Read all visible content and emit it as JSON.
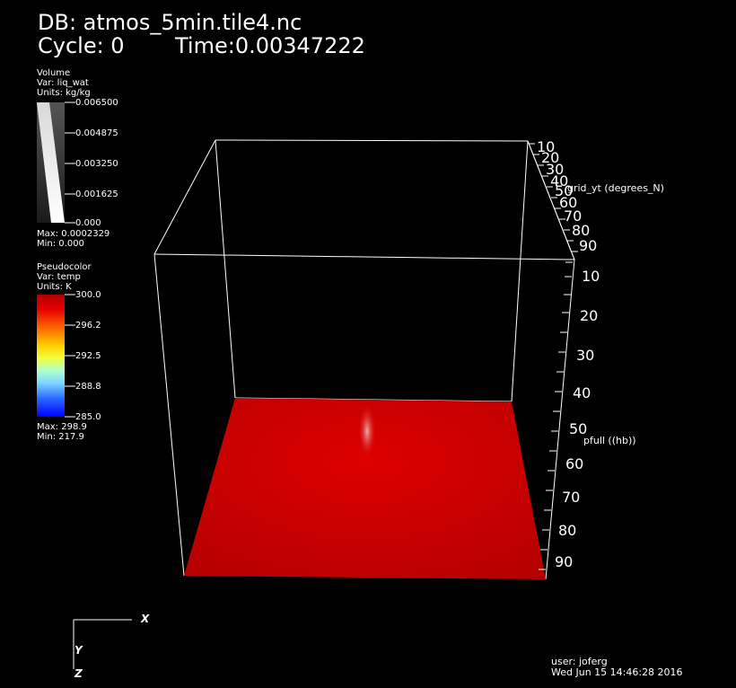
{
  "header": {
    "db_line": "DB: atmos_5min.tile4.nc",
    "cycle_line": "Cycle: 0",
    "time_line": "Time:0.00347222"
  },
  "volume_legend": {
    "plot_type": "Volume",
    "var": "Var: liq_wat",
    "units": "Units: kg/kg",
    "ticks": [
      "0.006500",
      "0.004875",
      "0.003250",
      "0.001625",
      "0.000"
    ],
    "max": "Max:  0.0002329",
    "min": "Min:  0.000"
  },
  "pseudocolor_legend": {
    "plot_type": "Pseudocolor",
    "var": "Var: temp",
    "units": "Units: K",
    "ticks": [
      "300.0",
      "296.2",
      "292.5",
      "288.8",
      "285.0"
    ],
    "max": "Max:  298.9",
    "min": "Min:  217.9"
  },
  "plot": {
    "y_axis_title": "grid_yt (degrees_N)",
    "y_axis_ticks": [
      "10",
      "20",
      "30",
      "40",
      "50",
      "60",
      "70",
      "80",
      "90"
    ],
    "z_axis_title": "pfull ((hb))",
    "z_axis_ticks": [
      "10",
      "20",
      "30",
      "40",
      "50",
      "60",
      "70",
      "80",
      "90"
    ],
    "surface_color": "#cc0000"
  },
  "triad": {
    "x": "X",
    "y": "Y",
    "z": "Z"
  },
  "footer": {
    "user": "user: joferg",
    "date": "Wed Jun 15 14:46:28 2016"
  }
}
